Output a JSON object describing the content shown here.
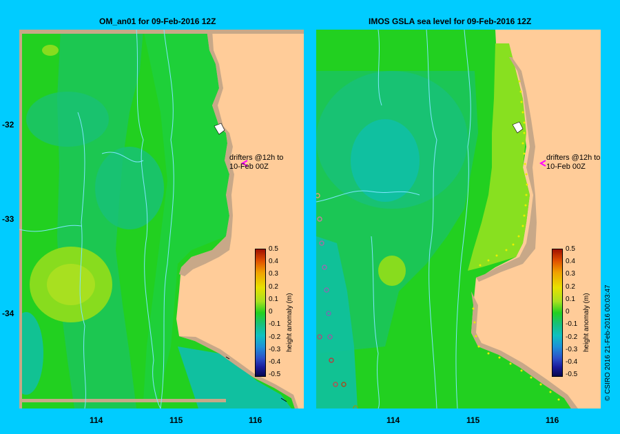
{
  "left_panel": {
    "title": "OM_an01  for 09-Feb-2016 12Z",
    "annotation_line1": "drifters @12h to",
    "annotation_line2": "10-Feb 00Z"
  },
  "right_panel": {
    "title": "IMOS GSLA sea level  for 09-Feb-2016 12Z",
    "annotation_line1": "drifters @12h to",
    "annotation_line2": "10-Feb 00Z"
  },
  "y_ticks": [
    "-32",
    "-33",
    "-34"
  ],
  "x_ticks": [
    "114",
    "115",
    "116"
  ],
  "colorbar": {
    "label": "height anomaly (m)",
    "ticks": [
      "0.5",
      "0.4",
      "0.3",
      "0.2",
      "0.1",
      "0",
      "-0.1",
      "-0.2",
      "-0.3",
      "-0.4",
      "-0.5"
    ],
    "colors": [
      "#08084e",
      "#1a1a9a",
      "#2b4fc8",
      "#1e90d8",
      "#10c0c0",
      "#18c07a",
      "#22d020",
      "#a8e020",
      "#e8e000",
      "#f0a000",
      "#e05000",
      "#a01000"
    ]
  },
  "credit": "© CSIRO 2016   21-Feb-2016 00:03:47"
}
